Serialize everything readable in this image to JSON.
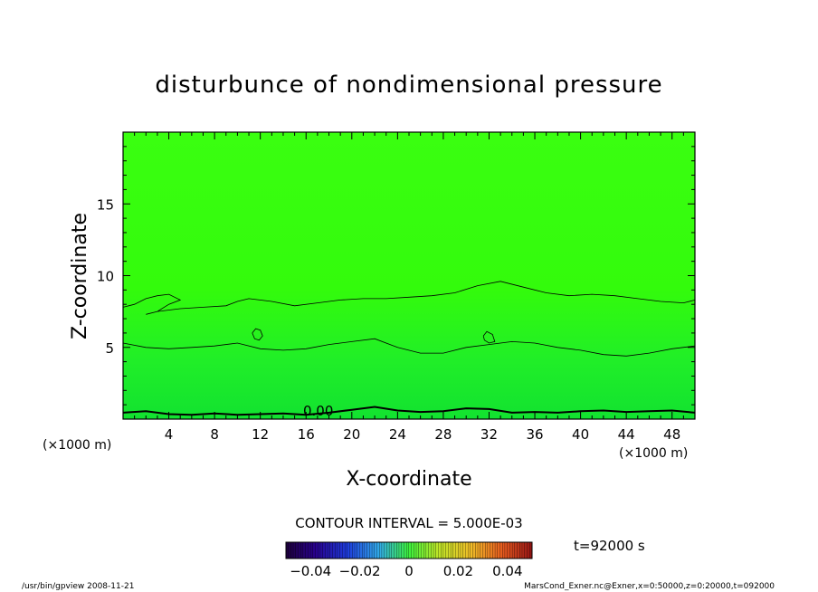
{
  "chart_data": {
    "type": "heatmap",
    "title": "disturbunce of nondimensional pressure",
    "xlabel": "X-coordinate",
    "ylabel": "Z-coordinate",
    "x_unit": "(×1000 m)",
    "y_unit": "(×1000 m)",
    "xlim": [
      0,
      50
    ],
    "ylim": [
      0,
      20
    ],
    "x_ticks": [
      "4",
      "8",
      "12",
      "16",
      "20",
      "24",
      "28",
      "32",
      "36",
      "40",
      "44",
      "48"
    ],
    "y_ticks": [
      "5",
      "10",
      "15"
    ],
    "grid": false,
    "contour_interval_label": "CONTOUR INTERVAL = 5.000E-03",
    "contour_label": "0.00",
    "time_label": "t=92000 s",
    "colorbar_ticks": [
      "−0.04",
      "−0.02",
      "0",
      "0.02",
      "0.04"
    ],
    "colorbar_range": [
      -0.05,
      0.05
    ],
    "field_range": [
      -0.003,
      0.002
    ],
    "contours": [
      {
        "level": 0.0,
        "points": [
          [
            0,
            0.45
          ],
          [
            2,
            0.55
          ],
          [
            4,
            0.35
          ],
          [
            6,
            0.3
          ],
          [
            8,
            0.4
          ],
          [
            10,
            0.3
          ],
          [
            12,
            0.35
          ],
          [
            14,
            0.4
          ],
          [
            16,
            0.3
          ],
          [
            18,
            0.45
          ],
          [
            20,
            0.65
          ],
          [
            22,
            0.85
          ],
          [
            24,
            0.6
          ],
          [
            26,
            0.5
          ],
          [
            28,
            0.55
          ],
          [
            30,
            0.75
          ],
          [
            32,
            0.7
          ],
          [
            34,
            0.45
          ],
          [
            36,
            0.5
          ],
          [
            38,
            0.45
          ],
          [
            40,
            0.55
          ],
          [
            42,
            0.6
          ],
          [
            44,
            0.5
          ],
          [
            46,
            0.55
          ],
          [
            48,
            0.6
          ],
          [
            50,
            0.45
          ]
        ]
      },
      {
        "level": 0.005,
        "points": [
          [
            0,
            5.3
          ],
          [
            2,
            5.0
          ],
          [
            4,
            4.9
          ],
          [
            6,
            5.0
          ],
          [
            8,
            5.1
          ],
          [
            10,
            5.3
          ],
          [
            12,
            4.9
          ],
          [
            14,
            4.8
          ],
          [
            16,
            4.9
          ],
          [
            18,
            5.2
          ],
          [
            20,
            5.4
          ],
          [
            22,
            5.6
          ],
          [
            24,
            5.0
          ],
          [
            26,
            4.6
          ],
          [
            28,
            4.6
          ],
          [
            30,
            5.0
          ],
          [
            32,
            5.2
          ],
          [
            34,
            5.4
          ],
          [
            36,
            5.3
          ],
          [
            38,
            5.0
          ],
          [
            40,
            4.8
          ],
          [
            42,
            4.5
          ],
          [
            44,
            4.4
          ],
          [
            46,
            4.6
          ],
          [
            48,
            4.9
          ],
          [
            50,
            5.1
          ]
        ]
      },
      {
        "level": 0.005,
        "points": [
          [
            0,
            7.8
          ],
          [
            1,
            8.0
          ],
          [
            2,
            8.4
          ],
          [
            3,
            8.6
          ],
          [
            4,
            8.7
          ],
          [
            5,
            8.3
          ],
          [
            4,
            8.0
          ],
          [
            3,
            7.5
          ],
          [
            2,
            7.3
          ],
          [
            3,
            7.5
          ],
          [
            5,
            7.7
          ],
          [
            7,
            7.8
          ],
          [
            9,
            7.9
          ],
          [
            10,
            8.2
          ],
          [
            11,
            8.4
          ],
          [
            13,
            8.2
          ],
          [
            15,
            7.9
          ],
          [
            17,
            8.1
          ],
          [
            19,
            8.3
          ],
          [
            21,
            8.4
          ],
          [
            23,
            8.4
          ],
          [
            25,
            8.5
          ],
          [
            27,
            8.6
          ],
          [
            29,
            8.8
          ],
          [
            31,
            9.3
          ],
          [
            33,
            9.6
          ],
          [
            35,
            9.2
          ],
          [
            37,
            8.8
          ],
          [
            39,
            8.6
          ],
          [
            41,
            8.7
          ],
          [
            43,
            8.6
          ],
          [
            45,
            8.4
          ],
          [
            47,
            8.2
          ],
          [
            49,
            8.1
          ],
          [
            50,
            8.3
          ]
        ]
      },
      {
        "level": 0.005,
        "points": [
          [
            11.3,
            6.0
          ],
          [
            11.6,
            6.3
          ],
          [
            12.0,
            6.2
          ],
          [
            12.2,
            5.8
          ],
          [
            11.9,
            5.5
          ],
          [
            11.5,
            5.6
          ],
          [
            11.3,
            6.0
          ]
        ]
      },
      {
        "level": 0.005,
        "points": [
          [
            31.5,
            5.8
          ],
          [
            31.8,
            6.1
          ],
          [
            32.3,
            5.9
          ],
          [
            32.5,
            5.4
          ],
          [
            32.0,
            5.3
          ],
          [
            31.6,
            5.5
          ],
          [
            31.5,
            5.8
          ]
        ]
      }
    ]
  },
  "footer": {
    "left": "/usr/bin/gpview   2008-11-21",
    "right": "MarsCond_Exner.nc@Exner,x=0:50000,z=0:20000,t=092000"
  }
}
